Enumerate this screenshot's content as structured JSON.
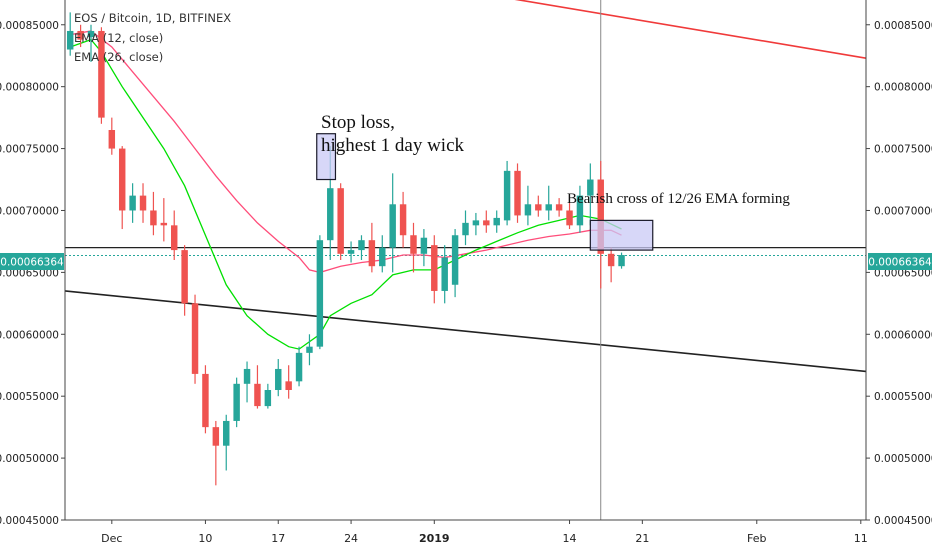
{
  "header": {
    "symbol_line": "EOS / Bitcoin, 1D, BITFINEX",
    "indicators": [
      "EMA (12, close)",
      "EMA (26, close)"
    ]
  },
  "price_label": {
    "text": "0.00066364",
    "color": "#26a69a"
  },
  "colors": {
    "up": "#26a69a",
    "down": "#ef5350",
    "ema12": "#00e000",
    "ema26": "#ff4d7a",
    "trend_red": "#f03a3a",
    "trend_black": "#222222",
    "box_fill": "#c9c9f5"
  },
  "annotations": {
    "stop_loss_line1": "Stop loss,",
    "stop_loss_line2": "highest 1 day wick",
    "bearish": "Bearish cross of 12/26 EMA forming"
  },
  "chart_data": {
    "type": "candlestick",
    "title": "EOS / Bitcoin, 1D, BITFINEX",
    "x_ticks": [
      {
        "label": "Dec",
        "day": 4
      },
      {
        "label": "10",
        "day": 13
      },
      {
        "label": "17",
        "day": 20
      },
      {
        "label": "24",
        "day": 27
      },
      {
        "label": "2019",
        "day": 35
      },
      {
        "label": "14",
        "day": 48
      },
      {
        "label": "21",
        "day": 55
      },
      {
        "label": "Feb",
        "day": 66
      },
      {
        "label": "11",
        "day": 76
      }
    ],
    "y_ticks": [
      "0.00085000",
      "0.00080000",
      "0.00075000",
      "0.00070000",
      "0.00065000",
      "0.00060000",
      "0.00055000",
      "0.00050000",
      "0.00045000"
    ],
    "ylim": [
      0.00045,
      0.00087
    ],
    "xlim": [
      -0.5,
      76.5
    ],
    "last_price": 0.00066364,
    "candles": [
      {
        "o": 0.00083,
        "h": 0.00086,
        "l": 0.000825,
        "c": 0.000845
      },
      {
        "o": 0.000845,
        "h": 0.00085,
        "l": 0.000832,
        "c": 0.000838
      },
      {
        "o": 0.00084,
        "h": 0.00085,
        "l": 0.00082,
        "c": 0.000845
      },
      {
        "o": 0.000845,
        "h": 0.000848,
        "l": 0.00077,
        "c": 0.000775
      },
      {
        "o": 0.000765,
        "h": 0.000775,
        "l": 0.000745,
        "c": 0.00075
      },
      {
        "o": 0.00075,
        "h": 0.000752,
        "l": 0.000685,
        "c": 0.0007
      },
      {
        "o": 0.0007,
        "h": 0.000722,
        "l": 0.00069,
        "c": 0.000712
      },
      {
        "o": 0.000712,
        "h": 0.000722,
        "l": 0.00069,
        "c": 0.0007
      },
      {
        "o": 0.0007,
        "h": 0.000715,
        "l": 0.00068,
        "c": 0.000688
      },
      {
        "o": 0.00069,
        "h": 0.00071,
        "l": 0.000675,
        "c": 0.000688
      },
      {
        "o": 0.000688,
        "h": 0.0007,
        "l": 0.00066,
        "c": 0.000668
      },
      {
        "o": 0.000668,
        "h": 0.000672,
        "l": 0.000615,
        "c": 0.000625
      },
      {
        "o": 0.000625,
        "h": 0.000632,
        "l": 0.00056,
        "c": 0.000568
      },
      {
        "o": 0.000568,
        "h": 0.000575,
        "l": 0.00052,
        "c": 0.000525
      },
      {
        "o": 0.000525,
        "h": 0.00053,
        "l": 0.000478,
        "c": 0.00051
      },
      {
        "o": 0.00051,
        "h": 0.000535,
        "l": 0.00049,
        "c": 0.00053
      },
      {
        "o": 0.00053,
        "h": 0.000565,
        "l": 0.000525,
        "c": 0.00056
      },
      {
        "o": 0.00056,
        "h": 0.000578,
        "l": 0.000545,
        "c": 0.000572
      },
      {
        "o": 0.00056,
        "h": 0.000575,
        "l": 0.00054,
        "c": 0.000542
      },
      {
        "o": 0.000542,
        "h": 0.00056,
        "l": 0.00054,
        "c": 0.000555
      },
      {
        "o": 0.000555,
        "h": 0.00058,
        "l": 0.00055,
        "c": 0.000572
      },
      {
        "o": 0.000562,
        "h": 0.000575,
        "l": 0.000548,
        "c": 0.000555
      },
      {
        "o": 0.000562,
        "h": 0.00059,
        "l": 0.000558,
        "c": 0.000585
      },
      {
        "o": 0.000585,
        "h": 0.0006,
        "l": 0.000575,
        "c": 0.00059
      },
      {
        "o": 0.00059,
        "h": 0.00068,
        "l": 0.000588,
        "c": 0.000676
      },
      {
        "o": 0.000676,
        "h": 0.000752,
        "l": 0.00066,
        "c": 0.000718
      },
      {
        "o": 0.000718,
        "h": 0.000722,
        "l": 0.00066,
        "c": 0.000665
      },
      {
        "o": 0.000665,
        "h": 0.000675,
        "l": 0.000658,
        "c": 0.000668
      },
      {
        "o": 0.000668,
        "h": 0.00068,
        "l": 0.00066,
        "c": 0.000676
      },
      {
        "o": 0.000676,
        "h": 0.00069,
        "l": 0.00065,
        "c": 0.000655
      },
      {
        "o": 0.000655,
        "h": 0.00068,
        "l": 0.00065,
        "c": 0.00067
      },
      {
        "o": 0.00067,
        "h": 0.00073,
        "l": 0.00065,
        "c": 0.000705
      },
      {
        "o": 0.000705,
        "h": 0.000715,
        "l": 0.00067,
        "c": 0.00068
      },
      {
        "o": 0.00068,
        "h": 0.00069,
        "l": 0.00065,
        "c": 0.000665
      },
      {
        "o": 0.000665,
        "h": 0.000685,
        "l": 0.000655,
        "c": 0.000678
      },
      {
        "o": 0.000672,
        "h": 0.00068,
        "l": 0.000625,
        "c": 0.000635
      },
      {
        "o": 0.000635,
        "h": 0.000672,
        "l": 0.000625,
        "c": 0.000662
      },
      {
        "o": 0.00064,
        "h": 0.000685,
        "l": 0.00063,
        "c": 0.00068
      },
      {
        "o": 0.00068,
        "h": 0.0007,
        "l": 0.000672,
        "c": 0.00069
      },
      {
        "o": 0.000688,
        "h": 0.000698,
        "l": 0.00068,
        "c": 0.000692
      },
      {
        "o": 0.000692,
        "h": 0.0007,
        "l": 0.000682,
        "c": 0.000688
      },
      {
        "o": 0.000688,
        "h": 0.0007,
        "l": 0.000682,
        "c": 0.000694
      },
      {
        "o": 0.000692,
        "h": 0.00074,
        "l": 0.000688,
        "c": 0.000732
      },
      {
        "o": 0.000732,
        "h": 0.000738,
        "l": 0.00069,
        "c": 0.000696
      },
      {
        "o": 0.000696,
        "h": 0.00072,
        "l": 0.000688,
        "c": 0.000705
      },
      {
        "o": 0.000705,
        "h": 0.000712,
        "l": 0.000695,
        "c": 0.0007
      },
      {
        "o": 0.0007,
        "h": 0.00072,
        "l": 0.000692,
        "c": 0.000705
      },
      {
        "o": 0.000705,
        "h": 0.00071,
        "l": 0.000695,
        "c": 0.0007
      },
      {
        "o": 0.0007,
        "h": 0.000706,
        "l": 0.000685,
        "c": 0.000688
      },
      {
        "o": 0.000688,
        "h": 0.00072,
        "l": 0.000682,
        "c": 0.000712
      },
      {
        "o": 0.000712,
        "h": 0.000738,
        "l": 0.000688,
        "c": 0.000725
      },
      {
        "o": 0.000725,
        "h": 0.00074,
        "l": 0.000637,
        "c": 0.000665
      },
      {
        "o": 0.000665,
        "h": 0.00067,
        "l": 0.000642,
        "c": 0.000655
      },
      {
        "o": 0.000655,
        "h": 0.000666,
        "l": 0.000653,
        "c": 0.000664
      }
    ],
    "ema12": [
      [
        0,
        0.000832
      ],
      [
        2,
        0.000838
      ],
      [
        3,
        0.000828
      ],
      [
        5,
        0.0008
      ],
      [
        7,
        0.000775
      ],
      [
        9,
        0.00075
      ],
      [
        11,
        0.00072
      ],
      [
        13,
        0.00068
      ],
      [
        15,
        0.00064
      ],
      [
        17,
        0.000615
      ],
      [
        19,
        0.0006
      ],
      [
        21,
        0.00059
      ],
      [
        22,
        0.000588
      ],
      [
        24,
        0.0006
      ],
      [
        25,
        0.000615
      ],
      [
        27,
        0.000625
      ],
      [
        29,
        0.000632
      ],
      [
        31,
        0.000648
      ],
      [
        33,
        0.000652
      ],
      [
        35,
        0.000652
      ],
      [
        37,
        0.00066
      ],
      [
        39,
        0.000668
      ],
      [
        41,
        0.000675
      ],
      [
        43,
        0.000682
      ],
      [
        45,
        0.000688
      ],
      [
        47,
        0.000692
      ],
      [
        49,
        0.000696
      ],
      [
        51,
        0.000693
      ],
      [
        53,
        0.000685
      ]
    ],
    "ema26": [
      [
        0,
        0.000842
      ],
      [
        2,
        0.000845
      ],
      [
        4,
        0.000832
      ],
      [
        6,
        0.000812
      ],
      [
        8,
        0.000792
      ],
      [
        10,
        0.000772
      ],
      [
        12,
        0.00075
      ],
      [
        14,
        0.000728
      ],
      [
        16,
        0.000708
      ],
      [
        18,
        0.00069
      ],
      [
        20,
        0.000675
      ],
      [
        22,
        0.000662
      ],
      [
        23,
        0.000652
      ],
      [
        24,
        0.00065
      ],
      [
        26,
        0.000655
      ],
      [
        28,
        0.000658
      ],
      [
        30,
        0.00066
      ],
      [
        32,
        0.000664
      ],
      [
        34,
        0.000664
      ],
      [
        36,
        0.000662
      ],
      [
        38,
        0.000665
      ],
      [
        40,
        0.000668
      ],
      [
        42,
        0.000672
      ],
      [
        44,
        0.000676
      ],
      [
        46,
        0.000679
      ],
      [
        48,
        0.000681
      ],
      [
        50,
        0.000684
      ],
      [
        52,
        0.000684
      ],
      [
        53,
        0.00068
      ]
    ],
    "trendlines": [
      {
        "color": "#f03a3a",
        "from": [
          29,
          0.00089
        ],
        "to": [
          76.5,
          0.000823
        ]
      },
      {
        "color": "#222222",
        "from": [
          -0.5,
          0.000635
        ],
        "to": [
          76.5,
          0.00057
        ]
      }
    ],
    "horizontal_line": 0.00067,
    "vertical_line_day": 51,
    "boxes": [
      {
        "x0": 23.7,
        "x1": 25.5,
        "y0": 0.000725,
        "y1": 0.000762,
        "border": "#1a1a2a"
      },
      {
        "x0": 50,
        "x1": 56,
        "y0": 0.000668,
        "y1": 0.000692,
        "border": "#1a1a2a"
      }
    ]
  }
}
